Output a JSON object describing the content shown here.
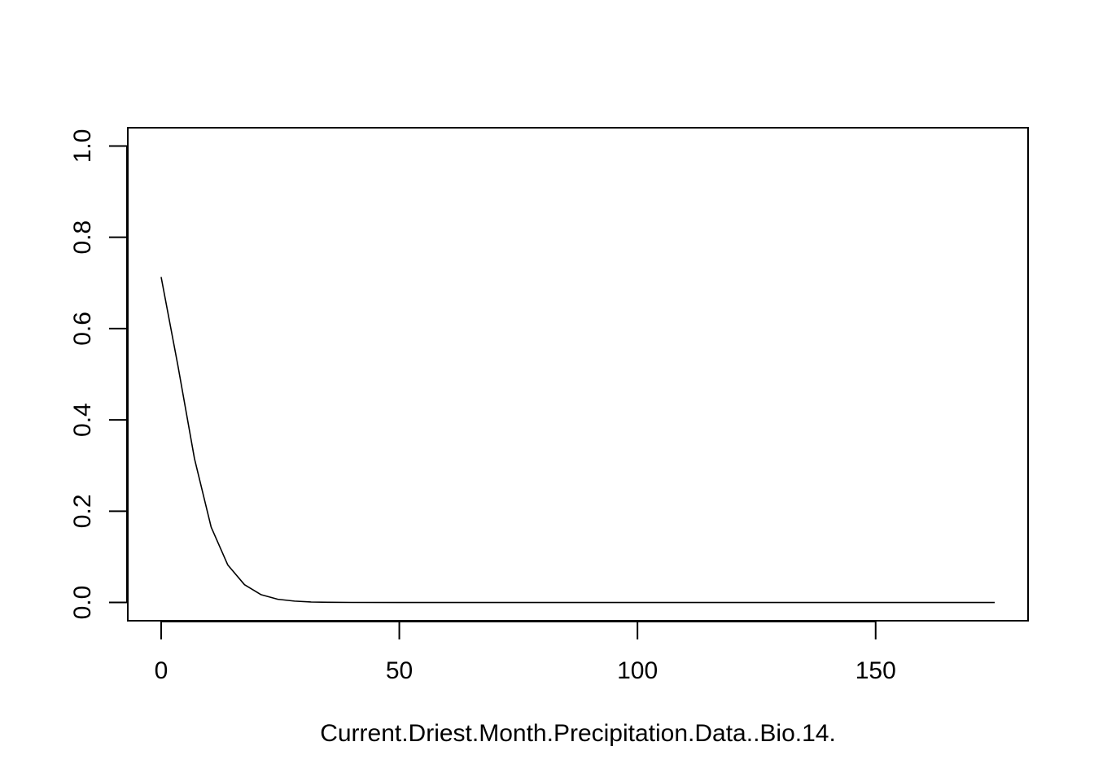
{
  "chart_data": {
    "type": "line",
    "title": "",
    "xlabel": "Current.Driest.Month.Precipitation.Data..Bio.14.",
    "ylabel": "",
    "xlim": [
      -7,
      182
    ],
    "ylim": [
      -0.04,
      1.04
    ],
    "x_ticks": [
      0,
      50,
      100,
      150
    ],
    "x_tick_labels": [
      "0",
      "50",
      "100",
      "150"
    ],
    "y_ticks": [
      0.0,
      0.2,
      0.4,
      0.6,
      0.8,
      1.0
    ],
    "y_tick_labels": [
      "0.0",
      "0.2",
      "0.4",
      "0.6",
      "0.8",
      "1.0"
    ],
    "grid": false,
    "line_color": "#000000",
    "series": [
      {
        "x": [
          0,
          3.5,
          7,
          10.5,
          14,
          17.5,
          21,
          24.5,
          28,
          31.5,
          35,
          40,
          50,
          60,
          70,
          80,
          90,
          100,
          110,
          120,
          130,
          140,
          150,
          160,
          170,
          175
        ],
        "y": [
          0.713,
          0.52,
          0.315,
          0.165,
          0.082,
          0.039,
          0.017,
          0.007,
          0.003,
          0.001,
          0.0004,
          0.0001,
          0,
          0,
          0,
          0,
          0,
          0,
          0,
          0,
          0,
          0,
          0,
          0,
          0,
          0
        ]
      }
    ]
  }
}
